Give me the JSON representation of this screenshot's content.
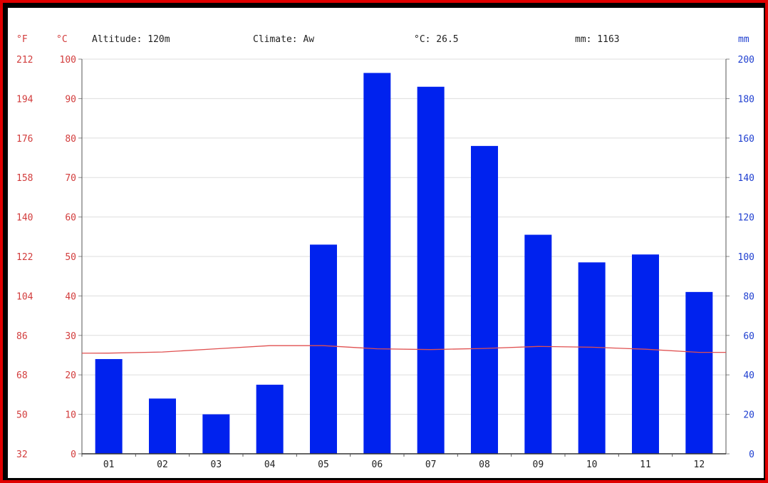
{
  "header": {
    "unit_f": "°F",
    "unit_c": "°C",
    "altitude": "Altitude: 120m",
    "climate": "Climate: Aw",
    "avg_temp": "°C: 26.5",
    "total_precip": "mm: 1163",
    "unit_mm": "mm"
  },
  "colors": {
    "frame": "#e00000",
    "bar": "#0022ee",
    "temp_line": "#e05050",
    "left_axis_text": "#d23c3c",
    "right_axis_text": "#1f3fd0",
    "grid": "#dddddd"
  },
  "chart_data": {
    "type": "bar",
    "categories": [
      "01",
      "02",
      "03",
      "04",
      "05",
      "06",
      "07",
      "08",
      "09",
      "10",
      "11",
      "12"
    ],
    "series": [
      {
        "name": "mm",
        "type": "bar",
        "axis": "right",
        "values": [
          48,
          28,
          20,
          35,
          106,
          193,
          186,
          156,
          111,
          97,
          101,
          82
        ]
      },
      {
        "name": "°C",
        "type": "line",
        "axis": "left",
        "values": [
          25.5,
          25.8,
          26.6,
          27.4,
          27.4,
          26.6,
          26.4,
          26.7,
          27.2,
          27.0,
          26.5,
          25.7
        ]
      }
    ],
    "ylim_celsius": [
      0,
      100
    ],
    "yticks_celsius": [
      0,
      10,
      20,
      30,
      40,
      50,
      60,
      70,
      80,
      90,
      100
    ],
    "yticks_fahrenheit": [
      32,
      50,
      68,
      86,
      104,
      122,
      140,
      158,
      176,
      194,
      212
    ],
    "ylim_mm": [
      0,
      200
    ],
    "yticks_mm": [
      0,
      20,
      40,
      60,
      80,
      100,
      120,
      140,
      160,
      180,
      200
    ],
    "grid": true
  }
}
